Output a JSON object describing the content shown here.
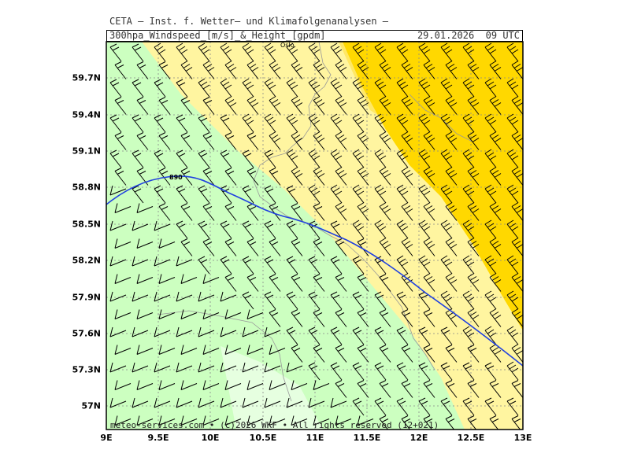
{
  "header": {
    "title": "CETA – Inst. f. Wetter– und Klimafolgenanalysen –",
    "subtitle": "300hpa_Windspeed_[m/s]_&_Height_[gpdm]",
    "datetime": "29.01.2026  09 UTC"
  },
  "map": {
    "lat_ticks": [
      "59.7N",
      "59.4N",
      "59.1N",
      "58.8N",
      "58.5N",
      "58.2N",
      "57.9N",
      "57.6N",
      "57.3N",
      "57N"
    ],
    "lon_ticks": [
      "9E",
      "9.5E",
      "10E",
      "10.5E",
      "11E",
      "11.5E",
      "12E",
      "12.5E",
      "13E"
    ],
    "city_label": "Oslo",
    "contour_label": "890",
    "colors": {
      "speed_lowest": "#e6ffe0",
      "speed_low": "#ccffc0",
      "speed_mid_low": "#fff5a0",
      "speed_mid": "#ffe866",
      "speed_high": "#ffd800",
      "height_contour": "#2040e0",
      "barb": "#000000",
      "coastline": "#999999"
    }
  },
  "footer": {
    "copyright": "meteo-services.com • (c)2026 WKF • All rights reserved (12+021)"
  }
}
